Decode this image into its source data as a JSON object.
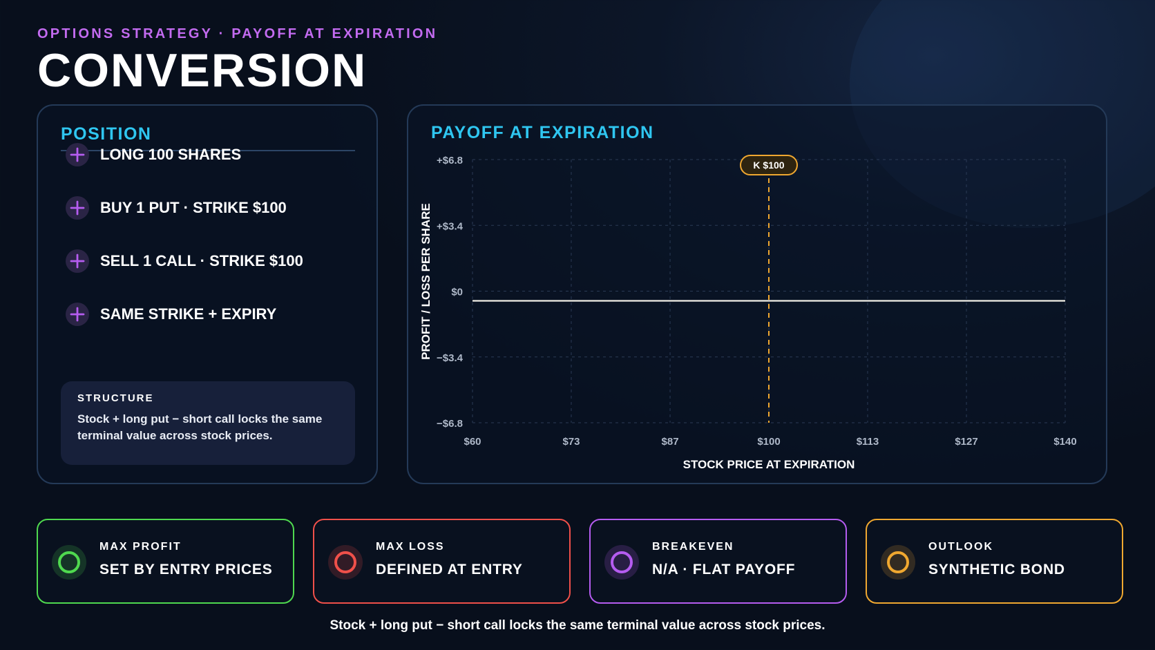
{
  "header": {
    "kicker": "OPTIONS STRATEGY · PAYOFF AT EXPIRATION",
    "title": "CONVERSION"
  },
  "position": {
    "heading": "POSITION",
    "legs": [
      {
        "icon": "plus-icon",
        "label": "LONG 100 SHARES"
      },
      {
        "icon": "plus-icon",
        "label": "BUY 1 PUT · STRIKE $100"
      },
      {
        "icon": "plus-icon",
        "label": "SELL 1 CALL · STRIKE $100"
      },
      {
        "icon": "plus-icon",
        "label": "SAME STRIKE + EXPIRY"
      }
    ],
    "structure": {
      "title": "STRUCTURE",
      "text": "Stock + long put − short call locks the same terminal value across stock prices."
    }
  },
  "chart_panel": {
    "heading": "PAYOFF AT EXPIRATION"
  },
  "chart_data": {
    "type": "line",
    "title": "PAYOFF AT EXPIRATION",
    "xlabel": "STOCK PRICE AT EXPIRATION",
    "ylabel": "PROFIT / LOSS PER SHARE",
    "xlim": [
      60,
      140
    ],
    "ylim": [
      -6.8,
      6.8
    ],
    "x_ticks": [
      60,
      73.33,
      86.67,
      100,
      113.33,
      126.67,
      140
    ],
    "x_tick_labels": [
      "$60",
      "$73",
      "$87",
      "$100",
      "$113",
      "$127",
      "$140"
    ],
    "y_ticks": [
      6.8,
      3.4,
      0,
      -3.4,
      -6.8
    ],
    "y_tick_labels": [
      "+$6.8",
      "+$3.4",
      "$0",
      "−$3.4",
      "−$6.8"
    ],
    "grid": true,
    "series": [
      {
        "x": [
          60,
          140
        ],
        "y": [
          -0.5,
          -0.5
        ],
        "color": "#f2efe6"
      }
    ],
    "strike": {
      "x": 100,
      "label": "K $100",
      "color": "#f0a830"
    }
  },
  "cards": [
    {
      "title": "MAX PROFIT",
      "value": "SET BY ENTRY PRICES",
      "color": "#4fd94f",
      "icon": "circle-icon"
    },
    {
      "title": "MAX LOSS",
      "value": "DEFINED AT ENTRY",
      "color": "#f0504a",
      "icon": "circle-icon"
    },
    {
      "title": "BREAKEVEN",
      "value": "N/A · FLAT PAYOFF",
      "color": "#b55cf0",
      "icon": "circle-icon"
    },
    {
      "title": "OUTLOOK",
      "value": "SYNTHETIC BOND",
      "color": "#f0a830",
      "icon": "circle-icon"
    }
  ],
  "footer": "Stock + long put − short call locks the same terminal value across stock prices."
}
